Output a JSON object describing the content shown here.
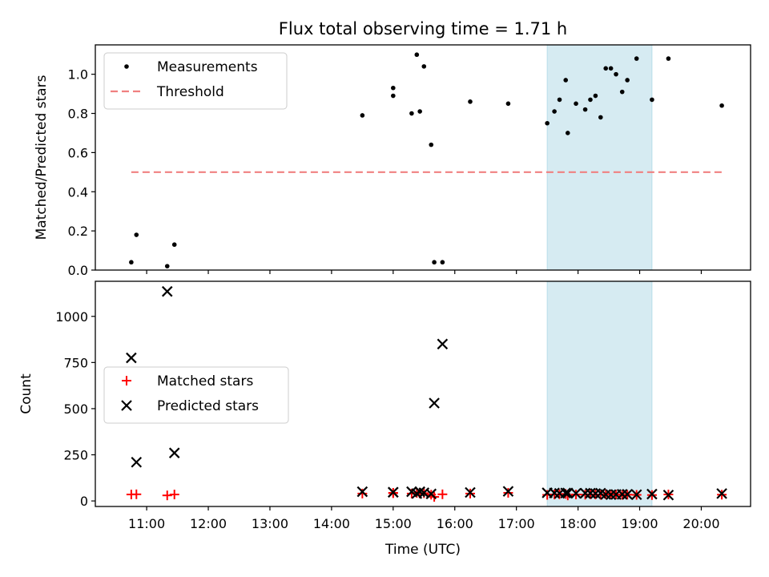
{
  "figure": {
    "title": "Flux total observing time = 1.71 h",
    "xlabel": "Time (UTC)"
  },
  "chart_data": [
    {
      "type": "scatter",
      "panel": "top",
      "ylabel": "Matched/Predicted stars",
      "ylim": [
        0,
        1.15
      ],
      "yticks": [
        0.0,
        0.2,
        0.4,
        0.6,
        0.8,
        1.0
      ],
      "ytick_labels": [
        "0.0",
        "0.2",
        "0.4",
        "0.6",
        "0.8",
        "1.0"
      ],
      "legend_position": "top-left",
      "series": [
        {
          "name": "Measurements",
          "kind": "dots",
          "color": "#000000",
          "x": [
            "10:45",
            "10:50",
            "11:20",
            "11:27",
            "14:30",
            "15:00",
            "15:00",
            "15:18",
            "15:23",
            "15:26",
            "15:30",
            "15:37",
            "15:40",
            "15:48",
            "16:15",
            "16:52",
            "17:30",
            "17:37",
            "17:42",
            "17:48",
            "17:50",
            "17:58",
            "18:07",
            "18:12",
            "18:17",
            "18:22",
            "18:27",
            "18:32",
            "18:37",
            "18:43",
            "18:48",
            "18:57",
            "19:12",
            "19:28",
            "20:20"
          ],
          "y": [
            0.04,
            0.18,
            0.02,
            0.13,
            0.79,
            0.93,
            0.89,
            0.8,
            1.1,
            0.81,
            1.04,
            0.64,
            0.04,
            0.04,
            0.86,
            0.85,
            0.75,
            0.81,
            0.87,
            0.97,
            0.7,
            0.85,
            0.82,
            0.87,
            0.89,
            0.78,
            1.03,
            1.03,
            1.0,
            0.91,
            0.97,
            1.08,
            0.87,
            1.08,
            0.84
          ]
        },
        {
          "name": "Threshold",
          "kind": "dashed-line",
          "color": "#f08080",
          "x": [
            "10:45",
            "20:20"
          ],
          "y": [
            0.5,
            0.5
          ]
        }
      ]
    },
    {
      "type": "scatter",
      "panel": "bottom",
      "ylabel": "Count",
      "ylim": [
        -30,
        1190
      ],
      "yticks": [
        0,
        250,
        500,
        750,
        1000
      ],
      "ytick_labels": [
        "0",
        "250",
        "500",
        "750",
        "1000"
      ],
      "legend_position": "center-left",
      "series": [
        {
          "name": "Matched stars",
          "kind": "plus",
          "color": "#ff0000",
          "x": [
            "10:45",
            "10:50",
            "11:20",
            "11:27",
            "14:30",
            "15:00",
            "15:00",
            "15:18",
            "15:23",
            "15:26",
            "15:30",
            "15:37",
            "15:40",
            "15:48",
            "16:15",
            "16:52",
            "17:30",
            "17:37",
            "17:42",
            "17:48",
            "17:50",
            "17:58",
            "18:07",
            "18:12",
            "18:17",
            "18:22",
            "18:27",
            "18:32",
            "18:37",
            "18:43",
            "18:48",
            "18:57",
            "19:12",
            "19:28",
            "20:20"
          ],
          "y": [
            35,
            36,
            30,
            35,
            40,
            44,
            42,
            40,
            44,
            40,
            42,
            34,
            22,
            36,
            40,
            44,
            33,
            35,
            36,
            38,
            30,
            35,
            34,
            36,
            35,
            33,
            36,
            35,
            35,
            33,
            34,
            33,
            32,
            35,
            34
          ]
        },
        {
          "name": "Predicted stars",
          "kind": "x",
          "color": "#000000",
          "x": [
            "10:45",
            "10:50",
            "11:20",
            "11:27",
            "14:30",
            "15:00",
            "15:00",
            "15:18",
            "15:23",
            "15:26",
            "15:30",
            "15:37",
            "15:40",
            "15:48",
            "16:15",
            "16:52",
            "17:30",
            "17:37",
            "17:42",
            "17:48",
            "17:50",
            "17:58",
            "18:07",
            "18:12",
            "18:17",
            "18:22",
            "18:27",
            "18:32",
            "18:37",
            "18:43",
            "18:48",
            "18:57",
            "19:12",
            "19:28",
            "20:20"
          ],
          "y": [
            775,
            210,
            1135,
            260,
            50,
            47,
            47,
            50,
            40,
            50,
            44,
            38,
            530,
            850,
            46,
            52,
            44,
            43,
            41,
            43,
            43,
            41,
            42,
            42,
            40,
            42,
            35,
            34,
            35,
            36,
            36,
            34,
            37,
            32,
            40
          ]
        }
      ]
    }
  ],
  "x_axis": {
    "ticks": [
      "11:00",
      "12:00",
      "13:00",
      "14:00",
      "15:00",
      "16:00",
      "17:00",
      "18:00",
      "19:00",
      "20:00"
    ],
    "range": [
      "10:10",
      "20:48"
    ]
  },
  "highlight": {
    "color": "#add8e6",
    "x_start": "17:30",
    "x_end": "19:12"
  }
}
